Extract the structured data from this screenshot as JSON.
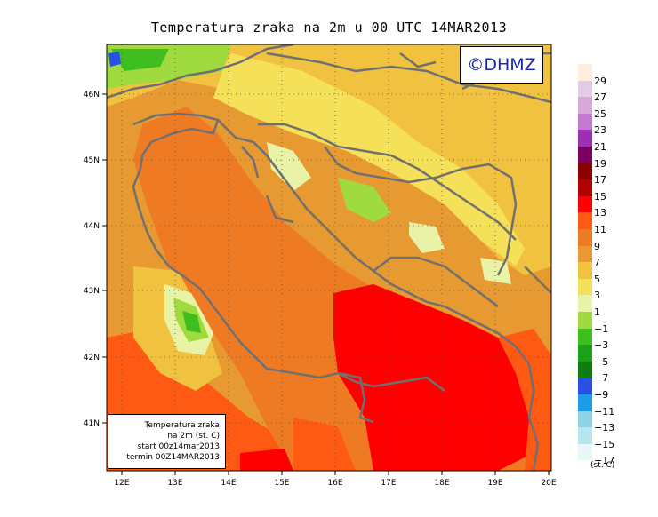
{
  "title": "Temperatura zraka na 2m u 00 UTC 14MAR2013",
  "copyright": "©DHMZ",
  "info_box": {
    "line1": "Temperatura zraka",
    "line2": "na 2m (st. C)",
    "line3": "start 00z14mar2013",
    "line4": "termin 00Z14MAR2013"
  },
  "lon_labels": [
    "12E",
    "13E",
    "14E",
    "15E",
    "16E",
    "17E",
    "18E",
    "19E",
    "20E"
  ],
  "lat_labels": [
    "41N",
    "42N",
    "43N",
    "44N",
    "45N",
    "46N"
  ],
  "legend": {
    "units": "(st. C)",
    "labels": [
      "29",
      "27",
      "25",
      "23",
      "21",
      "19",
      "17",
      "15",
      "13",
      "11",
      "9",
      "7",
      "5",
      "3",
      "1",
      "−1",
      "−3",
      "−5",
      "−7",
      "−9",
      "−11",
      "−13",
      "−15",
      "−17"
    ],
    "colors": [
      "#fdeee0",
      "#e3cde6",
      "#d8a8d8",
      "#c47ad2",
      "#9e2fb5",
      "#7a0060",
      "#8a0000",
      "#b30000",
      "#ff0000",
      "#ff5a14",
      "#ef7a24",
      "#e89a32",
      "#f1c240",
      "#f5e05a",
      "#e9f3a8",
      "#9fdb3f",
      "#3fbf1f",
      "#1aa11a",
      "#0c7f0c",
      "#2a4ee8",
      "#1e9ce8",
      "#8fd2e8",
      "#b8e6ee",
      "#e8f8f8"
    ]
  }
}
